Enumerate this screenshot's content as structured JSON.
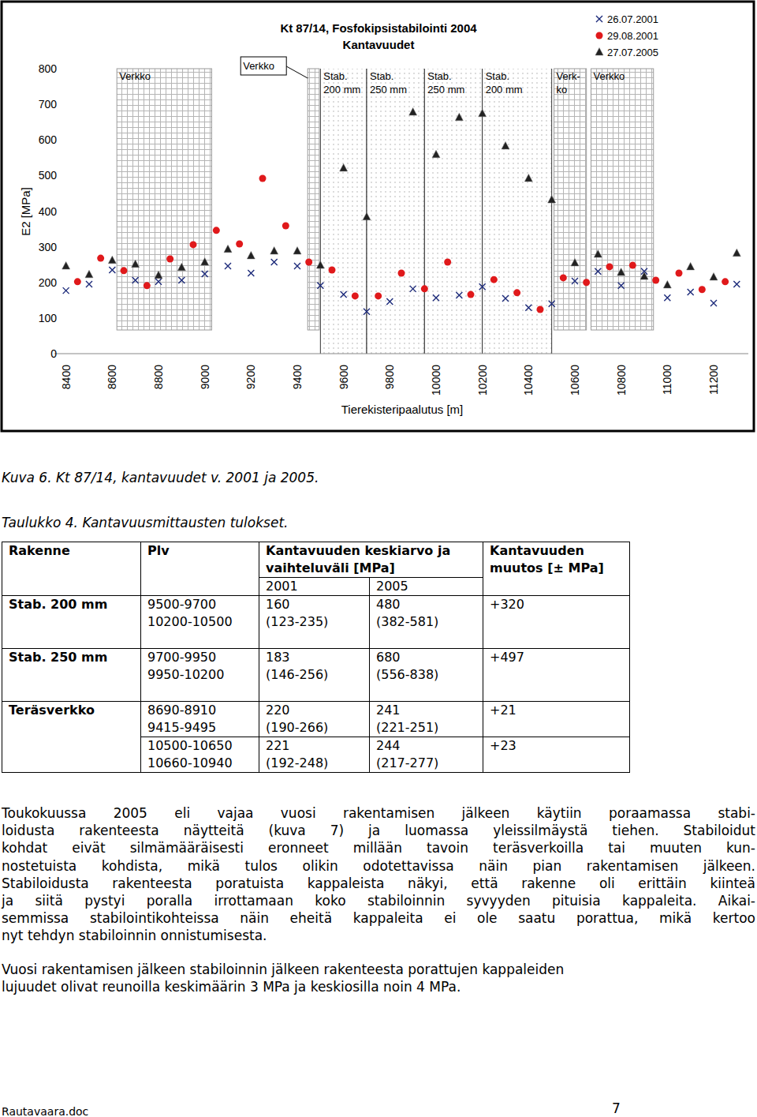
{
  "chart_data": {
    "type": "scatter",
    "title": "Kt 87/14, Fosfokipsistabilointi 2004",
    "subtitle": "Kantavuudet",
    "x_label": "Tierekisteripaalutus [m]",
    "y_label": "E2 [MPa]",
    "xlim": [
      8350,
      11350
    ],
    "xticks": [
      8400,
      8600,
      8800,
      9000,
      9200,
      9400,
      9600,
      9800,
      10000,
      10200,
      10400,
      10600,
      10800,
      11000,
      11200
    ],
    "ylim": [
      0,
      800
    ],
    "yticks": [
      0,
      100,
      200,
      300,
      400,
      500,
      600,
      700,
      800
    ],
    "grid": false,
    "legend": "upper right",
    "series": [
      {
        "name": "26.07.2001",
        "color": "#1c2a7a",
        "marker": "x",
        "x": [
          8400,
          8500,
          8600,
          8700,
          8800,
          8900,
          9000,
          9100,
          9200,
          9300,
          9400,
          9500,
          9600,
          9700,
          9800,
          9900,
          10000,
          10100,
          10200,
          10300,
          10400,
          10500,
          10600,
          10700,
          10800,
          10900,
          11000,
          11100,
          11200,
          11300
        ],
        "values": [
          177,
          195,
          235,
          206,
          202,
          206,
          224,
          246,
          226,
          257,
          246,
          191,
          166,
          118,
          146,
          182,
          157,
          164,
          188,
          155,
          129,
          140,
          204,
          231,
          191,
          231,
          157,
          173,
          142,
          195
        ]
      },
      {
        "name": "29.08.2001",
        "color": "#e0191b",
        "marker": "circle",
        "x": [
          8450,
          8550,
          8650,
          8750,
          8850,
          8950,
          9050,
          9150,
          9250,
          9350,
          9450,
          9550,
          9650,
          9750,
          9850,
          9950,
          10050,
          10150,
          10250,
          10350,
          10450,
          10550,
          10650,
          10750,
          10850,
          10950,
          11050,
          11150,
          11250
        ],
        "values": [
          202,
          268,
          233,
          191,
          266,
          306,
          346,
          308,
          492,
          359,
          257,
          235,
          162,
          162,
          226,
          182,
          257,
          166,
          208,
          171,
          124,
          213,
          200,
          244,
          248,
          206,
          226,
          180,
          202
        ]
      },
      {
        "name": "27.07.2005",
        "color": "#222222",
        "marker": "triangle",
        "x": [
          8400,
          8500,
          8600,
          8700,
          8800,
          8900,
          9000,
          9100,
          9200,
          9300,
          9400,
          9500,
          9600,
          9700,
          9800,
          9900,
          10000,
          10100,
          10200,
          10300,
          10400,
          10500,
          10600,
          10700,
          10800,
          10900,
          11000,
          11100,
          11200,
          11300
        ],
        "values": [
          246,
          222,
          262,
          251,
          220,
          242,
          257,
          293,
          275,
          288,
          288,
          248,
          521,
          384,
          null,
          678,
          559,
          663,
          674,
          583,
          492,
          432,
          255,
          279,
          228,
          217,
          193,
          244,
          215,
          282
        ]
      }
    ],
    "mesh_regions": [
      {
        "label": [
          "Verkko"
        ],
        "x0": 8620,
        "x1": 9030
      },
      {
        "label": [
          "Verkko"
        ],
        "x0": 9445,
        "x1": 9495
      },
      {
        "label": [
          "Verk-",
          "ko"
        ],
        "x0": 10510,
        "x1": 10650
      },
      {
        "label": [
          "Verkko"
        ],
        "x0": 10670,
        "x1": 10940
      }
    ],
    "stab_regions": [
      {
        "label": [
          "Stab.",
          "200 mm"
        ],
        "x0": 9500,
        "x1": 9700
      },
      {
        "label": [
          "Stab.",
          "250 mm"
        ],
        "x0": 9700,
        "x1": 9950
      },
      {
        "label": [
          "Stab.",
          "250 mm"
        ],
        "x0": 9950,
        "x1": 10200
      },
      {
        "label": [
          "Stab.",
          "200 mm"
        ],
        "x0": 10200,
        "x1": 10500
      }
    ]
  },
  "caption": "Kuva 6. Kt 87/14, kantavuudet v. 2001 ja 2005.",
  "table": {
    "caption": "Taulukko 4. Kantavuusmittausten tulokset.",
    "header": {
      "rakenne": "Rakenne",
      "plv": "Plv",
      "mean": [
        "Kantavuuden keskiarvo ja",
        "vaihteluväli [MPa]"
      ],
      "years": [
        "2001",
        "2005"
      ],
      "change": [
        "Kantavuuden",
        "muutos [± MPa]"
      ]
    },
    "groups": [
      {
        "rakenne": "Stab. 200 mm",
        "rows": [
          {
            "plv": [
              "9500-9700",
              "10200-10500"
            ],
            "y2001": [
              "160",
              "(123-235)"
            ],
            "y2005": [
              "480",
              "(382-581)"
            ],
            "change": "+320"
          }
        ]
      },
      {
        "rakenne": "Stab. 250 mm",
        "rows": [
          {
            "plv": [
              "9700-9950",
              "9950-10200"
            ],
            "y2001": [
              "183",
              "(146-256)"
            ],
            "y2005": [
              "680",
              "(556-838)"
            ],
            "change": "+497"
          }
        ]
      },
      {
        "rakenne": "Teräsverkko",
        "rows": [
          {
            "plv": [
              "8690-8910",
              "9415-9495"
            ],
            "y2001": [
              "220",
              "(190-266)"
            ],
            "y2005": [
              "241",
              "(221-251)"
            ],
            "change": "+21"
          },
          {
            "plv": [
              "10500-10650",
              "10660-10940"
            ],
            "y2001": [
              "221",
              "(192-248)"
            ],
            "y2005": [
              "244",
              "(217-277)"
            ],
            "change": "+23"
          }
        ]
      }
    ]
  },
  "paragraphs": [
    [
      "Toukokuussa 2005 eli vajaa vuosi rakentamisen jälkeen käytiin poraamassa stabi-",
      "loidusta rakenteesta näytteitä (kuva 7) ja luomassa yleissilmäystä tiehen. Stabiloidut",
      "kohdat eivät silmämääräisesti eronneet millään tavoin teräsverkoilla tai muuten kun-",
      "nostetuista kohdista, mikä tulos olikin odotettavissa näin pian rakentamisen jälkeen.",
      "Stabiloidusta rakenteesta poratuista kappaleista näkyi, että rakenne oli erittäin kiinteä",
      "ja siitä pystyi poralla irrottamaan koko stabiloinnin syvyyden pituisia kappaleita. Aikai-",
      "semmissa stabilointikohteissa näin eheitä kappaleita ei ole saatu porattua, mikä kertoo",
      "nyt tehdyn stabiloinnin onnistumisesta."
    ],
    [
      "Vuosi rakentamisen jälkeen stabiloinnin jälkeen rakenteesta porattujen kappaleiden",
      "lujuudet olivat reunoilla keskimäärin 3 MPa ja keskiosilla noin 4 MPa."
    ]
  ],
  "footer": {
    "file": "Rautavaara.doc",
    "page": "7"
  }
}
